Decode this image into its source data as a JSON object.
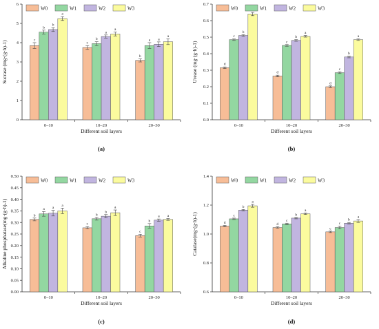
{
  "colors": {
    "W0": "#f7bd97",
    "W1": "#93d7a1",
    "W2": "#c1b5e0",
    "W3": "#fbfb9e",
    "axis": "#333333",
    "err": "#444444"
  },
  "chart_data": [
    {
      "id": "a",
      "panel_label": "(a)",
      "type": "bar",
      "categories": [
        "0–10",
        "10–20",
        "20–30"
      ],
      "xlabel": "Different soil layers",
      "ylabel": "Sucrase (mg·(g·h)-1)",
      "ylim": [
        0,
        6
      ],
      "yticks": [
        "0",
        "1",
        "2",
        "3",
        "4",
        "5",
        "6"
      ],
      "legend": [
        "W0",
        "W1",
        "W2",
        "W3"
      ],
      "series": [
        {
          "name": "W0",
          "values": [
            3.85,
            3.75,
            3.08
          ],
          "errors": [
            0.15,
            0.1,
            0.08
          ],
          "letters": [
            "c",
            "c",
            "b"
          ]
        },
        {
          "name": "W1",
          "values": [
            4.55,
            3.95,
            3.85
          ],
          "errors": [
            0.1,
            0.1,
            0.15
          ],
          "letters": [
            "b",
            "b",
            "a"
          ]
        },
        {
          "name": "W2",
          "values": [
            4.68,
            4.32,
            3.92
          ],
          "errors": [
            0.1,
            0.08,
            0.12
          ],
          "letters": [
            "b",
            "a",
            "a"
          ]
        },
        {
          "name": "W3",
          "values": [
            5.25,
            4.45,
            4.05
          ],
          "errors": [
            0.1,
            0.1,
            0.15
          ],
          "letters": [
            "a",
            "a",
            "a"
          ]
        }
      ]
    },
    {
      "id": "b",
      "panel_label": "(b)",
      "type": "bar",
      "categories": [
        "0–10",
        "10–20",
        "20–30"
      ],
      "xlabel": "Different soil layers",
      "ylabel": "Urease (mg·(g·h)-1)",
      "ylim": [
        0,
        0.7
      ],
      "yticks": [
        "0.0",
        "0.1",
        "0.2",
        "0.3",
        "0.4",
        "0.5",
        "0.6",
        "0.7"
      ],
      "legend": [
        "W0",
        "W1",
        "W2",
        "W3"
      ],
      "series": [
        {
          "name": "W0",
          "values": [
            0.315,
            0.265,
            0.2
          ],
          "errors": [
            0.005,
            0.005,
            0.005
          ],
          "letters": [
            "d",
            "d",
            "d"
          ]
        },
        {
          "name": "W1",
          "values": [
            0.485,
            0.45,
            0.285
          ],
          "errors": [
            0.005,
            0.005,
            0.005
          ],
          "letters": [
            "c",
            "c",
            "c"
          ]
        },
        {
          "name": "W2",
          "values": [
            0.51,
            0.48,
            0.38
          ],
          "errors": [
            0.005,
            0.005,
            0.005
          ],
          "letters": [
            "b",
            "b",
            "b"
          ]
        },
        {
          "name": "W3",
          "values": [
            0.64,
            0.505,
            0.485
          ],
          "errors": [
            0.01,
            0.005,
            0.005
          ],
          "letters": [
            "a",
            "a",
            "a"
          ]
        }
      ]
    },
    {
      "id": "c",
      "panel_label": "(c)",
      "type": "bar",
      "categories": [
        "0–10",
        "10–20",
        "20–30"
      ],
      "xlabel": "Different soil layers",
      "ylabel": "Alkaline phosphatase(mg·(g·h)-1)",
      "ylim": [
        0,
        0.5
      ],
      "yticks": [
        "0.00",
        "0.05",
        "0.10",
        "0.15",
        "0.20",
        "0.25",
        "0.30",
        "0.35",
        "0.40",
        "0.45",
        "0.50"
      ],
      "legend": [
        "W0",
        "W1",
        "W2",
        "W3"
      ],
      "series": [
        {
          "name": "W0",
          "values": [
            0.313,
            0.277,
            0.243
          ],
          "errors": [
            0.006,
            0.005,
            0.006
          ],
          "letters": [
            "b",
            "c",
            "c"
          ]
        },
        {
          "name": "W1",
          "values": [
            0.337,
            0.316,
            0.285
          ],
          "errors": [
            0.01,
            0.006,
            0.01
          ],
          "letters": [
            "a",
            "b",
            "b"
          ]
        },
        {
          "name": "W2",
          "values": [
            0.34,
            0.327,
            0.31
          ],
          "errors": [
            0.012,
            0.007,
            0.005
          ],
          "letters": [
            "a",
            "b",
            "a"
          ]
        },
        {
          "name": "W3",
          "values": [
            0.35,
            0.342,
            0.313
          ],
          "errors": [
            0.012,
            0.012,
            0.004
          ],
          "letters": [
            "a",
            "a",
            "a"
          ]
        }
      ]
    },
    {
      "id": "d",
      "panel_label": "(d)",
      "type": "bar",
      "categories": [
        "0–10",
        "10–20",
        "20–30"
      ],
      "xlabel": "Different soil layers",
      "ylabel": "Catalase(mg·(g·h)-1)",
      "ylim": [
        0.6,
        1.4
      ],
      "yticks": [
        "0.6",
        "0.8",
        "1.0",
        "1.2",
        "1.4"
      ],
      "legend": [
        "W0",
        "W1",
        "W2",
        "W3"
      ],
      "series": [
        {
          "name": "W0",
          "values": [
            1.055,
            1.045,
            1.015
          ],
          "errors": [
            0.005,
            0.005,
            0.005
          ],
          "letters": [
            "d",
            "d",
            "c"
          ]
        },
        {
          "name": "W1",
          "values": [
            1.105,
            1.07,
            1.045
          ],
          "errors": [
            0.005,
            0.005,
            0.01
          ],
          "letters": [
            "c",
            "c",
            "c"
          ]
        },
        {
          "name": "W2",
          "values": [
            1.165,
            1.11,
            1.075
          ],
          "errors": [
            0.005,
            0.005,
            0.005
          ],
          "letters": [
            "b",
            "b",
            "b"
          ]
        },
        {
          "name": "W3",
          "values": [
            1.195,
            1.14,
            1.09
          ],
          "errors": [
            0.01,
            0.005,
            0.01
          ],
          "letters": [
            "a",
            "a",
            "a"
          ]
        }
      ]
    }
  ]
}
